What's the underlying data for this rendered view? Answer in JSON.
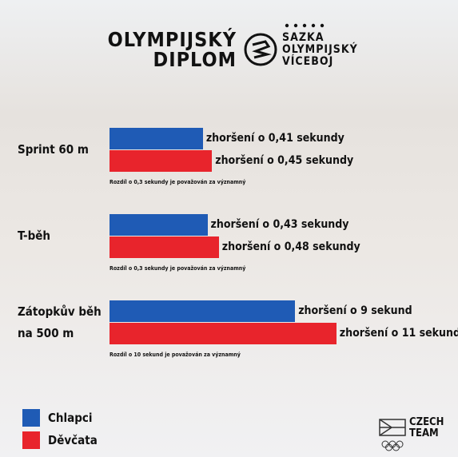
{
  "header": {
    "title_line1": "OLYMPIJSKÝ",
    "title_line2": "DIPLOM",
    "brand_line1": "SAZKA",
    "brand_line2": "OLYMPIJSKÝ",
    "brand_line3": "VÍCEBOJ"
  },
  "chart_data": [
    {
      "type": "bar",
      "title": "Sprint 60 m",
      "series": [
        {
          "name": "Chlapci",
          "color": "#1f5bb5",
          "values": [
            0.41
          ],
          "value_labels": [
            "zhoršení o 0,41 sekundy"
          ]
        },
        {
          "name": "Děvčata",
          "color": "#e8242c",
          "values": [
            0.45
          ],
          "value_labels": [
            "zhoršení o 0,45 sekundy"
          ]
        }
      ],
      "note": "Rozdíl o 0,3 sekundy je považován za významný"
    },
    {
      "type": "bar",
      "title": "T-běh",
      "series": [
        {
          "name": "Chlapci",
          "color": "#1f5bb5",
          "values": [
            0.43
          ],
          "value_labels": [
            "zhoršení o 0,43 sekundy"
          ]
        },
        {
          "name": "Děvčata",
          "color": "#e8242c",
          "values": [
            0.48
          ],
          "value_labels": [
            "zhoršení o 0,48 sekundy"
          ]
        }
      ],
      "note": "Rozdíl o 0,3 sekundy je považován za významný"
    },
    {
      "type": "bar",
      "title": "Zátopkův běh na 500 m",
      "series": [
        {
          "name": "Chlapci",
          "color": "#1f5bb5",
          "values": [
            9
          ],
          "value_labels": [
            "zhoršení o 9 sekund"
          ]
        },
        {
          "name": "Děvčata",
          "color": "#e8242c",
          "values": [
            11
          ],
          "value_labels": [
            "zhoršení o 11 sekund"
          ]
        }
      ],
      "note": "Rozdíl o 10 sekund je považován za významný"
    }
  ],
  "footer": {
    "logo_line1": "CZECH",
    "logo_line2": "TEAM"
  }
}
